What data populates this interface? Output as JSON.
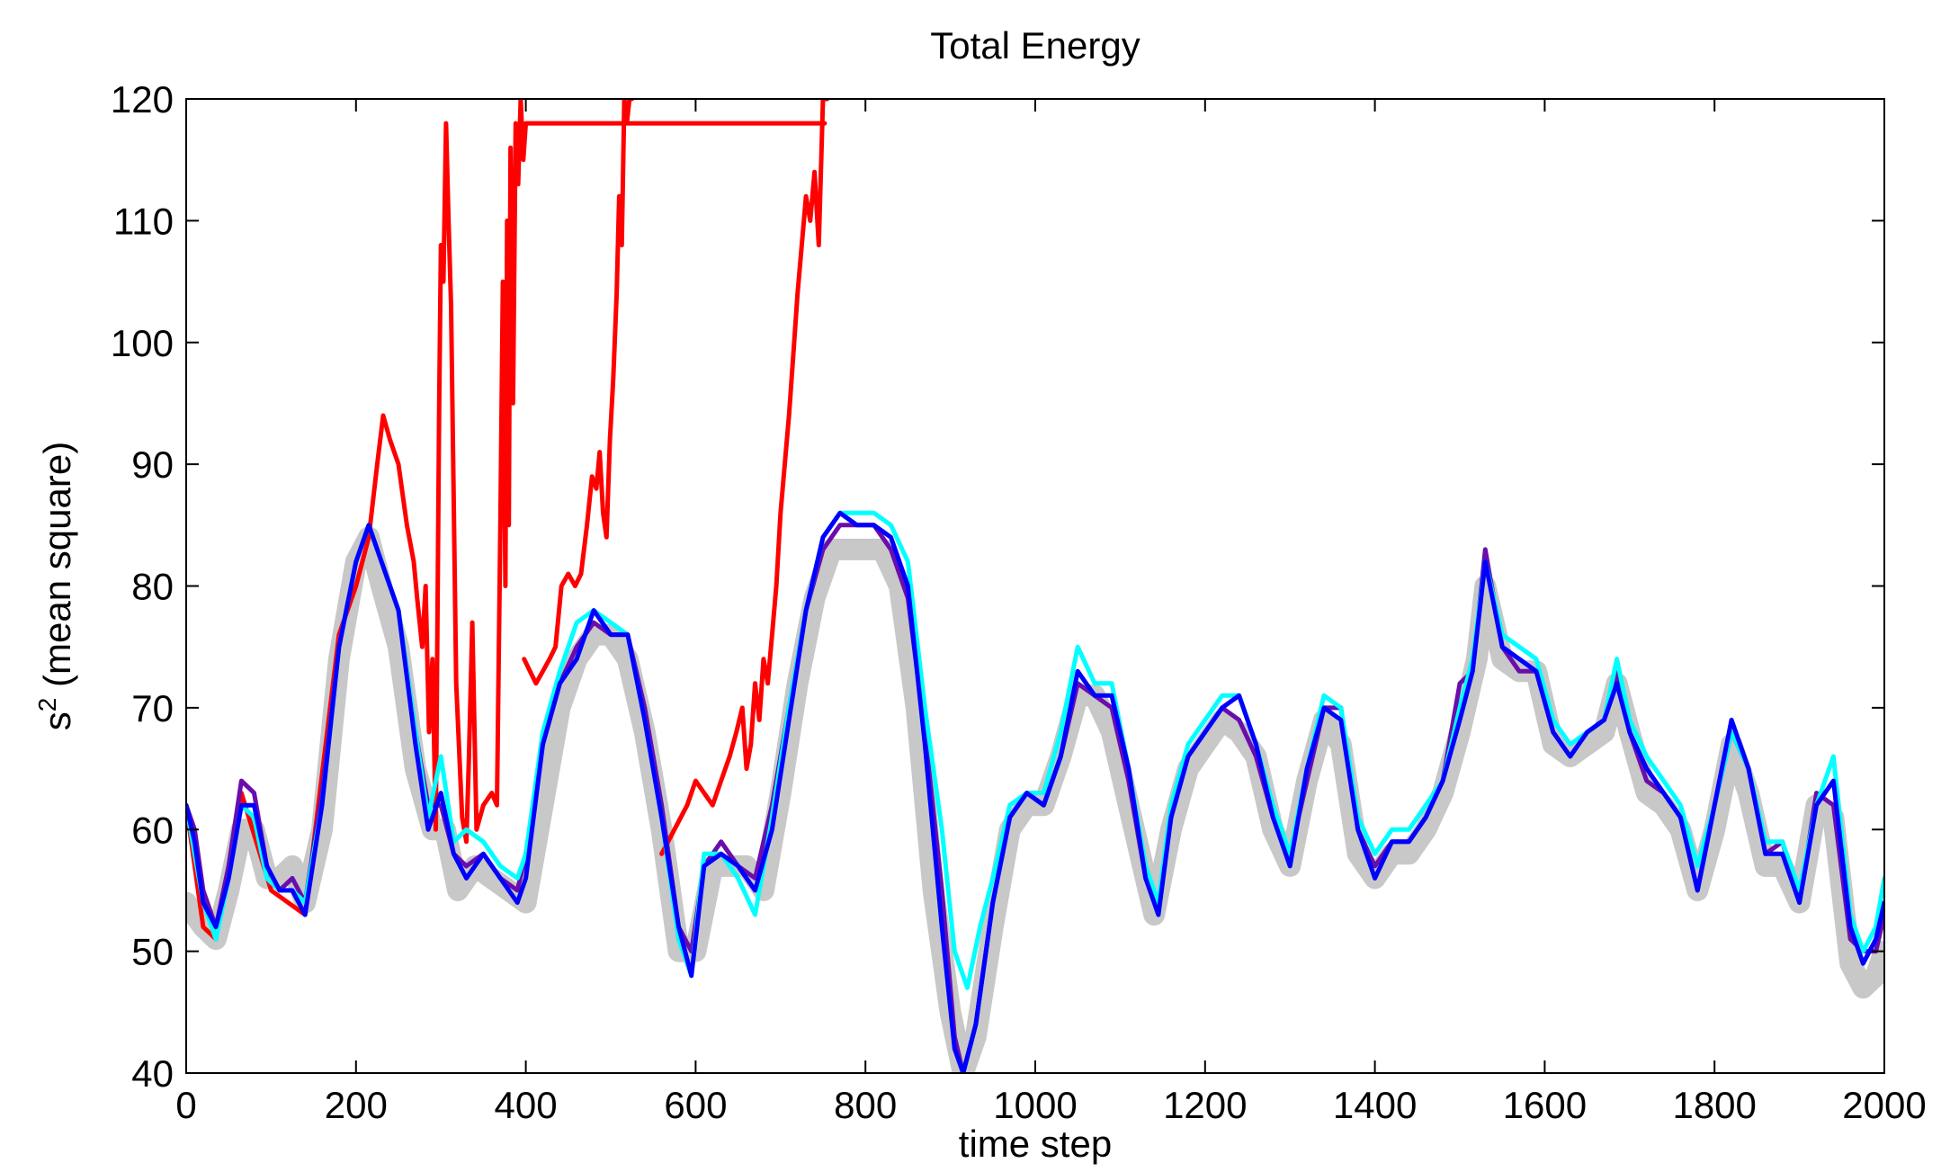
{
  "chart_data": {
    "type": "line",
    "title": "Total Energy",
    "xlabel": "time step",
    "ylabel": {
      "base": "s",
      "superscript": "2",
      "rest": " (mean square)"
    },
    "xlim": [
      0,
      2000
    ],
    "ylim": [
      40,
      120
    ],
    "xticks": [
      0,
      200,
      400,
      600,
      800,
      1000,
      1200,
      1400,
      1600,
      1800,
      2000
    ],
    "yticks": [
      40,
      50,
      60,
      70,
      80,
      90,
      100,
      110,
      120
    ],
    "grid": false,
    "legend": "none",
    "series": [
      {
        "color": "#c8c8c8",
        "style": "thick",
        "x": [
          0,
          10,
          20,
          35,
          50,
          65,
          80,
          95,
          110,
          125,
          140,
          160,
          180,
          200,
          215,
          230,
          250,
          270,
          290,
          305,
          320,
          340,
          360,
          380,
          400,
          420,
          440,
          460,
          480,
          500,
          520,
          540,
          560,
          580,
          600,
          620,
          640,
          660,
          680,
          700,
          720,
          740,
          760,
          780,
          800,
          820,
          840,
          860,
          880,
          900,
          915,
          930,
          950,
          970,
          990,
          1010,
          1030,
          1050,
          1070,
          1090,
          1110,
          1130,
          1140,
          1160,
          1180,
          1200,
          1220,
          1240,
          1260,
          1280,
          1300,
          1320,
          1340,
          1360,
          1380,
          1400,
          1420,
          1440,
          1460,
          1480,
          1500,
          1520,
          1530,
          1550,
          1570,
          1590,
          1610,
          1630,
          1650,
          1670,
          1685,
          1700,
          1720,
          1740,
          1760,
          1780,
          1800,
          1820,
          1840,
          1860,
          1880,
          1900,
          1920,
          1940,
          1960,
          1975,
          1990,
          2000
        ],
        "y": [
          54,
          53,
          52,
          51,
          55,
          60,
          60,
          56,
          56,
          57,
          54,
          60,
          74,
          82,
          84,
          80,
          75,
          65,
          60,
          60,
          55,
          57,
          56,
          55,
          54,
          62,
          70,
          74,
          76,
          76,
          74,
          68,
          60,
          50,
          50,
          57,
          57,
          57,
          55,
          63,
          72,
          79,
          83,
          83,
          83,
          83,
          80,
          70,
          55,
          45,
          40,
          43,
          52,
          60,
          62,
          62,
          66,
          71,
          71,
          68,
          62,
          56,
          53,
          60,
          65,
          67,
          69,
          68,
          66,
          60,
          57,
          64,
          69,
          67,
          58,
          56,
          58,
          58,
          60,
          63,
          68,
          74,
          80,
          74,
          73,
          73,
          67,
          66,
          67,
          68,
          72,
          68,
          63,
          62,
          60,
          55,
          60,
          67,
          63,
          57,
          57,
          54,
          62,
          61,
          49,
          47,
          48,
          50
        ]
      },
      {
        "color": "#ff0000",
        "style": "normal",
        "x": [
          0,
          20,
          35,
          65,
          100,
          140,
          180,
          200,
          215,
          225,
          232,
          240,
          250,
          260,
          268,
          272,
          278,
          282,
          286,
          290,
          294,
          298,
          300,
          303,
          306,
          309,
          312,
          318,
          325,
          330,
          333,
          337,
          342,
          350,
          360,
          366,
          370,
          373,
          376,
          378,
          380,
          382,
          385,
          388,
          391,
          394,
          397,
          400,
          410,
          420,
          430,
          440,
          450,
          460,
          470,
          480,
          483,
          487,
          492,
          496,
          500,
          504,
          508,
          512,
          515,
          518,
          520,
          523,
          525,
          528,
          530,
          540,
          550,
          560,
          570,
          580,
          590,
          600,
          610,
          620,
          625,
          630,
          635,
          640,
          645,
          650,
          655,
          660,
          664,
          668,
          672,
          676,
          680,
          684,
          688,
          692,
          696,
          700,
          704,
          708,
          712,
          716,
          720,
          724,
          728,
          732,
          736,
          740,
          744,
          748,
          752
        ],
        "y": [
          62,
          52,
          51,
          63,
          55,
          53,
          76,
          80,
          84,
          90,
          94,
          92,
          90,
          85,
          82,
          79,
          75,
          80,
          68,
          74,
          60,
          95,
          108,
          105,
          118,
          110,
          103,
          72,
          61,
          59,
          66,
          77,
          60,
          62,
          63,
          62,
          85,
          105,
          80,
          110,
          85,
          116,
          95,
          118,
          113,
          120,
          115,
          118,
          118,
          118,
          118,
          118,
          118,
          118,
          118,
          118,
          118,
          118,
          118,
          118,
          118,
          118,
          118,
          118,
          118,
          118,
          118,
          118,
          118,
          118,
          118,
          118,
          118,
          118,
          118,
          118,
          118,
          118,
          118,
          118,
          118,
          118,
          118,
          118,
          118,
          118,
          118,
          118,
          118,
          118,
          118,
          118,
          118,
          118,
          118,
          118,
          118,
          118,
          118,
          118,
          118,
          118,
          118,
          118,
          118,
          118,
          118,
          118,
          118,
          118,
          118
        ]
      },
      {
        "color": "#ff0000",
        "style": "normal",
        "x": [
          398,
          405,
          412,
          420,
          428,
          435,
          442,
          450,
          458,
          465,
          472,
          478,
          483,
          487,
          491,
          495,
          499,
          503,
          507,
          510,
          513,
          516,
          519,
          522,
          525
        ],
        "y": [
          74,
          73,
          72,
          73,
          74,
          75,
          80,
          81,
          80,
          81,
          85,
          89,
          88,
          91,
          86,
          84,
          92,
          97,
          104,
          112,
          108,
          120,
          118,
          120,
          120
        ]
      },
      {
        "color": "#ff0000",
        "style": "normal",
        "x": [
          560,
          575,
          590,
          600,
          610,
          620,
          630,
          640,
          648,
          655,
          660,
          665,
          670,
          675,
          680,
          685,
          690,
          695,
          700,
          705,
          710,
          715,
          720,
          725,
          730,
          735,
          740,
          745,
          750,
          755
        ],
        "y": [
          58,
          60,
          62,
          64,
          63,
          62,
          64,
          66,
          68,
          70,
          65,
          67,
          72,
          69,
          74,
          72,
          76,
          80,
          86,
          90,
          94,
          99,
          104,
          108,
          112,
          110,
          114,
          108,
          120,
          120
        ]
      },
      {
        "color": "#6a0dad",
        "style": "normal",
        "x": [
          0,
          10,
          20,
          35,
          50,
          65,
          80,
          95,
          110,
          125,
          140,
          160,
          180,
          200,
          215,
          230,
          250,
          270,
          285,
          300,
          315,
          330,
          350,
          370,
          390,
          400,
          420,
          440,
          460,
          480,
          500,
          520,
          540,
          560,
          580,
          595,
          610,
          630,
          650,
          670,
          690,
          710,
          730,
          750,
          770,
          790,
          810,
          830,
          850,
          870,
          890,
          905,
          915,
          930,
          950,
          970,
          990,
          1010,
          1030,
          1050,
          1070,
          1090,
          1110,
          1130,
          1145,
          1160,
          1180,
          1200,
          1220,
          1240,
          1260,
          1280,
          1300,
          1320,
          1340,
          1360,
          1380,
          1400,
          1420,
          1440,
          1460,
          1480,
          1500,
          1515,
          1530,
          1550,
          1570,
          1590,
          1610,
          1630,
          1650,
          1670,
          1685,
          1700,
          1720,
          1740,
          1760,
          1780,
          1800,
          1820,
          1840,
          1860,
          1880,
          1900,
          1920,
          1940,
          1960,
          1975,
          1990,
          2000
        ],
        "y": [
          62,
          60,
          55,
          52,
          57,
          64,
          63,
          57,
          55,
          56,
          54,
          63,
          75,
          82,
          85,
          82,
          78,
          68,
          62,
          62,
          58,
          57,
          58,
          56,
          55,
          58,
          67,
          72,
          75,
          77,
          76,
          76,
          70,
          62,
          52,
          50,
          57,
          59,
          57,
          56,
          62,
          70,
          78,
          83,
          85,
          85,
          85,
          83,
          79,
          68,
          55,
          43,
          40,
          44,
          54,
          61,
          63,
          62,
          66,
          72,
          71,
          70,
          64,
          56,
          54,
          61,
          66,
          68,
          70,
          69,
          66,
          61,
          58,
          64,
          70,
          70,
          60,
          57,
          59,
          59,
          61,
          64,
          72,
          73,
          83,
          75,
          73,
          73,
          68,
          66,
          68,
          69,
          73,
          68,
          64,
          63,
          61,
          55,
          62,
          68,
          65,
          58,
          59,
          54,
          63,
          62,
          51,
          50,
          50,
          53
        ]
      },
      {
        "color": "#00ffff",
        "style": "normal",
        "x": [
          0,
          10,
          20,
          35,
          50,
          65,
          80,
          95,
          110,
          125,
          140,
          160,
          180,
          200,
          215,
          230,
          250,
          270,
          285,
          300,
          315,
          330,
          350,
          370,
          390,
          400,
          420,
          440,
          460,
          480,
          500,
          520,
          540,
          560,
          580,
          595,
          610,
          630,
          650,
          670,
          690,
          710,
          730,
          750,
          770,
          790,
          810,
          830,
          850,
          870,
          890,
          905,
          920,
          935,
          950,
          970,
          990,
          1010,
          1030,
          1050,
          1070,
          1090,
          1110,
          1130,
          1145,
          1160,
          1180,
          1200,
          1220,
          1240,
          1260,
          1280,
          1300,
          1320,
          1340,
          1360,
          1380,
          1400,
          1420,
          1440,
          1460,
          1480,
          1500,
          1515,
          1530,
          1550,
          1570,
          1590,
          1610,
          1630,
          1650,
          1670,
          1685,
          1700,
          1720,
          1740,
          1760,
          1780,
          1800,
          1820,
          1840,
          1860,
          1880,
          1900,
          1920,
          1940,
          1960,
          1975,
          1990,
          2000
        ],
        "y": [
          62,
          58,
          54,
          51,
          56,
          62,
          61,
          56,
          55,
          55,
          54,
          62,
          75,
          82,
          85,
          82,
          78,
          68,
          61,
          66,
          59,
          60,
          59,
          57,
          56,
          58,
          68,
          73,
          77,
          78,
          77,
          76,
          69,
          61,
          51,
          48,
          58,
          58,
          56,
          53,
          61,
          70,
          78,
          84,
          86,
          86,
          86,
          85,
          82,
          70,
          60,
          50,
          47,
          52,
          56,
          62,
          63,
          63,
          68,
          75,
          72,
          72,
          65,
          57,
          54,
          62,
          67,
          69,
          71,
          71,
          67,
          62,
          58,
          65,
          71,
          70,
          61,
          58,
          60,
          60,
          62,
          64,
          70,
          74,
          82,
          76,
          75,
          74,
          69,
          67,
          68,
          69,
          74,
          69,
          66,
          64,
          62,
          57,
          62,
          68,
          65,
          59,
          59,
          55,
          62,
          66,
          53,
          50,
          52,
          56
        ]
      },
      {
        "color": "#0000ff",
        "style": "normal",
        "x": [
          0,
          10,
          20,
          35,
          50,
          65,
          80,
          95,
          110,
          125,
          140,
          160,
          180,
          200,
          215,
          230,
          250,
          270,
          285,
          300,
          315,
          330,
          350,
          370,
          390,
          400,
          420,
          440,
          460,
          480,
          500,
          520,
          540,
          560,
          580,
          595,
          610,
          630,
          650,
          670,
          690,
          710,
          730,
          750,
          770,
          790,
          810,
          830,
          850,
          870,
          890,
          905,
          915,
          930,
          950,
          970,
          990,
          1010,
          1030,
          1050,
          1070,
          1090,
          1110,
          1130,
          1145,
          1160,
          1180,
          1200,
          1220,
          1240,
          1260,
          1280,
          1300,
          1320,
          1340,
          1360,
          1380,
          1400,
          1420,
          1440,
          1460,
          1480,
          1500,
          1515,
          1530,
          1550,
          1570,
          1590,
          1610,
          1630,
          1650,
          1670,
          1685,
          1700,
          1720,
          1740,
          1760,
          1780,
          1800,
          1820,
          1840,
          1860,
          1880,
          1900,
          1920,
          1940,
          1960,
          1975,
          1990,
          2000
        ],
        "y": [
          62,
          59,
          54,
          52,
          56,
          62,
          62,
          57,
          55,
          55,
          53,
          62,
          75,
          82,
          85,
          82,
          78,
          67,
          60,
          63,
          58,
          56,
          58,
          56,
          54,
          56,
          67,
          72,
          74,
          78,
          76,
          76,
          69,
          61,
          52,
          48,
          57,
          58,
          57,
          55,
          60,
          69,
          78,
          84,
          86,
          85,
          85,
          84,
          80,
          67,
          52,
          42,
          40,
          44,
          54,
          61,
          63,
          62,
          66,
          73,
          71,
          71,
          65,
          56,
          53,
          61,
          66,
          68,
          70,
          71,
          67,
          61,
          57,
          65,
          70,
          69,
          60,
          56,
          59,
          59,
          61,
          64,
          69,
          73,
          82,
          75,
          74,
          73,
          68,
          66,
          68,
          69,
          72,
          68,
          65,
          63,
          61,
          55,
          62,
          69,
          65,
          58,
          58,
          54,
          62,
          64,
          52,
          49,
          51,
          54
        ]
      }
    ]
  }
}
